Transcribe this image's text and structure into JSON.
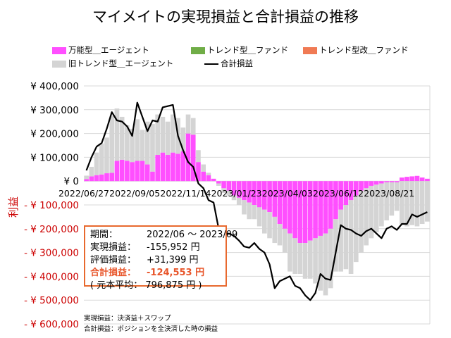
{
  "chart_data": {
    "type": "bar",
    "title": "マイメイトの実現損益と合計損益の推移",
    "ylabel": "利益",
    "ylim": [
      -600000,
      400000
    ],
    "y_ticks": [
      {
        "value": 400000,
        "label": "¥ 400,000",
        "neg": false
      },
      {
        "value": 300000,
        "label": "¥ 300,000",
        "neg": false
      },
      {
        "value": 200000,
        "label": "¥ 200,000",
        "neg": false
      },
      {
        "value": 100000,
        "label": "¥ 100,000",
        "neg": false
      },
      {
        "value": 0,
        "label": "¥ 0",
        "neg": false
      },
      {
        "value": -100000,
        "label": "- ¥ 100,000",
        "neg": true
      },
      {
        "value": -200000,
        "label": "- ¥ 200,000",
        "neg": true
      },
      {
        "value": -300000,
        "label": "- ¥ 300,000",
        "neg": true
      },
      {
        "value": -400000,
        "label": "- ¥ 400,000",
        "neg": true
      },
      {
        "value": -500000,
        "label": "- ¥ 500,000",
        "neg": true
      },
      {
        "value": -600000,
        "label": "- ¥ 600,000",
        "neg": true
      }
    ],
    "x_ticks": [
      {
        "index": 0,
        "label": "2022/06/27"
      },
      {
        "index": 10,
        "label": "2022/09/05"
      },
      {
        "index": 20,
        "label": "2022/11/14"
      },
      {
        "index": 30,
        "label": "2023/01/23"
      },
      {
        "index": 40,
        "label": "2023/04/03"
      },
      {
        "index": 50,
        "label": "2023/06/12"
      },
      {
        "index": 60,
        "label": "2023/08/21"
      }
    ],
    "grid": true,
    "legend_position": "top",
    "colors": {
      "versatile": "#FF4FFF",
      "trend": "#70AD47",
      "trend_kai": "#F07A54",
      "old_trend": "#D4D4D4",
      "total": "#000000",
      "negative_tick": "#CC0000",
      "infobox_border": "#E8692E",
      "total_text": "#E8552A"
    },
    "series": [
      {
        "name": "万能型＿エージェント",
        "kind": "bar",
        "values": [
          8000,
          20000,
          25000,
          28000,
          33000,
          35000,
          85000,
          90000,
          85000,
          80000,
          85000,
          85000,
          70000,
          40000,
          110000,
          120000,
          110000,
          120000,
          115000,
          125000,
          200000,
          195000,
          80000,
          40000,
          25000,
          10000,
          -10000,
          -30000,
          -40000,
          -60000,
          -70000,
          -80000,
          -90000,
          -100000,
          -110000,
          -120000,
          -130000,
          -150000,
          -180000,
          -200000,
          -220000,
          -240000,
          -260000,
          -260000,
          -250000,
          -240000,
          -230000,
          -220000,
          -200000,
          -160000,
          -120000,
          -100000,
          -80000,
          -60000,
          -40000,
          -30000,
          -20000,
          -15000,
          -10000,
          -5000,
          -5000,
          -5000,
          15000,
          18000,
          20000,
          22000,
          15000,
          10000
        ]
      },
      {
        "name": "トレンド型＿ファンド",
        "kind": "bar",
        "values": [
          0,
          0,
          0,
          0,
          0,
          0,
          0,
          0,
          0,
          0,
          0,
          0,
          0,
          0,
          0,
          0,
          0,
          0,
          0,
          0,
          0,
          0,
          0,
          0,
          0,
          0,
          0,
          0,
          0,
          0,
          0,
          0,
          0,
          0,
          0,
          0,
          0,
          0,
          0,
          0,
          0,
          0,
          0,
          0,
          0,
          0,
          0,
          0,
          0,
          0,
          0,
          0,
          0,
          0,
          0,
          0,
          0,
          0,
          0,
          0,
          0,
          0,
          0,
          0,
          0,
          0,
          0,
          0
        ]
      },
      {
        "name": "トレンド型改＿ファンド",
        "kind": "bar",
        "values": [
          0,
          0,
          0,
          0,
          0,
          0,
          0,
          0,
          0,
          0,
          0,
          0,
          0,
          0,
          0,
          0,
          0,
          0,
          0,
          0,
          0,
          0,
          0,
          0,
          0,
          0,
          0,
          0,
          0,
          0,
          0,
          0,
          0,
          0,
          0,
          0,
          0,
          0,
          0,
          0,
          0,
          0,
          0,
          0,
          0,
          0,
          0,
          0,
          0,
          0,
          0,
          0,
          0,
          0,
          0,
          0,
          0,
          0,
          0,
          0,
          0,
          0,
          0,
          0,
          0,
          0,
          0,
          0
        ]
      },
      {
        "name": "旧トレンド型＿エージェント",
        "kind": "bar",
        "values": [
          15000,
          40000,
          95000,
          130000,
          150000,
          240000,
          220000,
          180000,
          150000,
          140000,
          175000,
          130000,
          180000,
          200000,
          170000,
          150000,
          140000,
          160000,
          150000,
          100000,
          80000,
          70000,
          50000,
          30000,
          10000,
          0,
          -10000,
          -20000,
          -20000,
          -20000,
          -30000,
          -60000,
          -70000,
          -60000,
          -80000,
          -100000,
          -110000,
          -110000,
          -90000,
          -100000,
          -160000,
          -150000,
          -130000,
          -150000,
          -160000,
          -190000,
          -230000,
          -260000,
          -250000,
          -220000,
          -260000,
          -270000,
          -310000,
          -280000,
          -260000,
          -240000,
          -220000,
          -200000,
          -180000,
          -160000,
          -140000,
          -120000,
          -180000,
          -190000,
          -185000,
          -190000,
          -180000,
          -170000
        ]
      },
      {
        "name": "合計損益",
        "kind": "line",
        "values": [
          45000,
          100000,
          145000,
          160000,
          220000,
          290000,
          255000,
          250000,
          230000,
          190000,
          330000,
          270000,
          210000,
          255000,
          250000,
          310000,
          315000,
          320000,
          190000,
          130000,
          80000,
          60000,
          -10000,
          -30000,
          -80000,
          -90000,
          -200000,
          -230000,
          -220000,
          -230000,
          -250000,
          -275000,
          -280000,
          -260000,
          -285000,
          -300000,
          -350000,
          -450000,
          -420000,
          -410000,
          -400000,
          -440000,
          -450000,
          -480000,
          -500000,
          -470000,
          -390000,
          -410000,
          -415000,
          -300000,
          -185000,
          -200000,
          -205000,
          -220000,
          -230000,
          -210000,
          -200000,
          -220000,
          -240000,
          -200000,
          -190000,
          -205000,
          -180000,
          -180000,
          -140000,
          -150000,
          -140000,
          -130000
        ]
      }
    ]
  },
  "legend": {
    "items": [
      {
        "label": "万能型＿エージェント",
        "kind": "bar",
        "color": "#FF4FFF"
      },
      {
        "label": "トレンド型＿ファンド",
        "kind": "bar",
        "color": "#70AD47"
      },
      {
        "label": "トレンド型改＿ファンド",
        "kind": "bar",
        "color": "#F07A54"
      },
      {
        "label": "旧トレンド型＿エージェント",
        "kind": "bar",
        "color": "#D4D4D4"
      },
      {
        "label": "合計損益",
        "kind": "line",
        "color": "#000000"
      }
    ]
  },
  "infobox": {
    "period_key": "期間：",
    "period_val": "2022/06 ～ 2023/09",
    "realized_key": "実現損益：",
    "realized_val": "-155,952 円",
    "unrealized_key": "評価損益：",
    "unrealized_val": "+31,399 円",
    "total_key": "合計損益：",
    "total_val": "-124,553 円",
    "principal_text": "( 元本平均：  796,875 円 )"
  },
  "notes": {
    "note1": "実現損益：決済益＋スワップ",
    "note2": "合計損益：ポジションを全決済した時の損益"
  }
}
